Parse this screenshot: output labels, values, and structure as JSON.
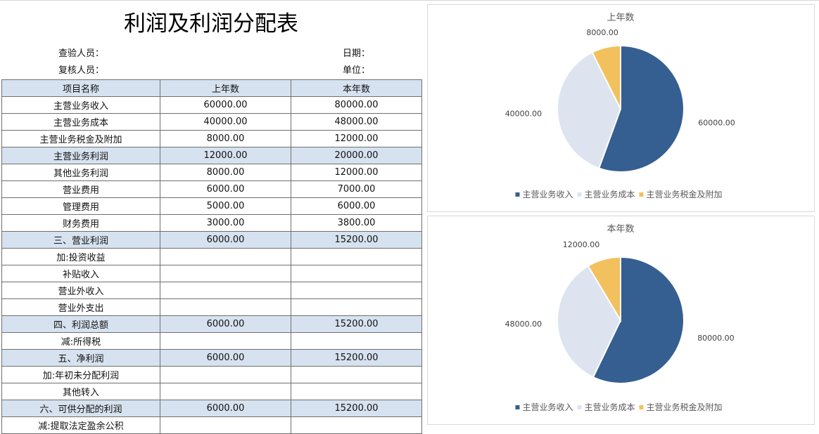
{
  "title": "利润及利润分配表",
  "meta": {
    "checker": "查验人员：",
    "date": "日期：",
    "reviewer": "复核人员：",
    "unit": "单位："
  },
  "table": {
    "headers": [
      "项目名称",
      "上年数",
      "本年数"
    ],
    "rows": [
      {
        "name": "主营业务收入",
        "prev": "60000.00",
        "curr": "80000.00",
        "hl": false
      },
      {
        "name": "主营业务成本",
        "prev": "40000.00",
        "curr": "48000.00",
        "hl": false
      },
      {
        "name": "主营业务税金及附加",
        "prev": "8000.00",
        "curr": "12000.00",
        "hl": false
      },
      {
        "name": "主营业务利润",
        "prev": "12000.00",
        "curr": "20000.00",
        "hl": true
      },
      {
        "name": "其他业务利润",
        "prev": "8000.00",
        "curr": "12000.00",
        "hl": false
      },
      {
        "name": "营业费用",
        "prev": "6000.00",
        "curr": "7000.00",
        "hl": false
      },
      {
        "name": "管理费用",
        "prev": "5000.00",
        "curr": "6000.00",
        "hl": false
      },
      {
        "name": "财务费用",
        "prev": "3000.00",
        "curr": "3800.00",
        "hl": false
      },
      {
        "name": "三、营业利润",
        "prev": "6000.00",
        "curr": "15200.00",
        "hl": true
      },
      {
        "name": "加:投资收益",
        "prev": "",
        "curr": "",
        "hl": false
      },
      {
        "name": "补贴收入",
        "prev": "",
        "curr": "",
        "hl": false
      },
      {
        "name": "营业外收入",
        "prev": "",
        "curr": "",
        "hl": false
      },
      {
        "name": "营业外支出",
        "prev": "",
        "curr": "",
        "hl": false
      },
      {
        "name": "四、利润总额",
        "prev": "6000.00",
        "curr": "15200.00",
        "hl": true
      },
      {
        "name": "减:所得税",
        "prev": "",
        "curr": "",
        "hl": false
      },
      {
        "name": "五、净利润",
        "prev": "6000.00",
        "curr": "15200.00",
        "hl": true
      },
      {
        "name": "加:年初未分配利润",
        "prev": "",
        "curr": "",
        "hl": false
      },
      {
        "name": "其他转入",
        "prev": "",
        "curr": "",
        "hl": false
      },
      {
        "name": "六、可供分配的利润",
        "prev": "6000.00",
        "curr": "15200.00",
        "hl": true
      },
      {
        "name": "减:提取法定盈余公积",
        "prev": "",
        "curr": "",
        "hl": false
      }
    ]
  },
  "colors": {
    "slice1": "#355f91",
    "slice2": "#dde4ef",
    "slice3": "#f2c05d",
    "header_fill": "#d6e2ef"
  },
  "chart_data": [
    {
      "type": "pie",
      "title": "上年数",
      "categories": [
        "主营业务收入",
        "主营业务成本",
        "主营业务税金及附加"
      ],
      "values": [
        60000,
        40000,
        8000
      ],
      "labels": [
        "60000.00",
        "40000.00",
        "8000.00"
      ],
      "legend_position": "bottom"
    },
    {
      "type": "pie",
      "title": "本年数",
      "categories": [
        "主营业务收入",
        "主营业务成本",
        "主营业务税金及附加"
      ],
      "values": [
        80000,
        48000,
        12000
      ],
      "labels": [
        "80000.00",
        "48000.00",
        "12000.00"
      ],
      "legend_position": "bottom"
    }
  ]
}
